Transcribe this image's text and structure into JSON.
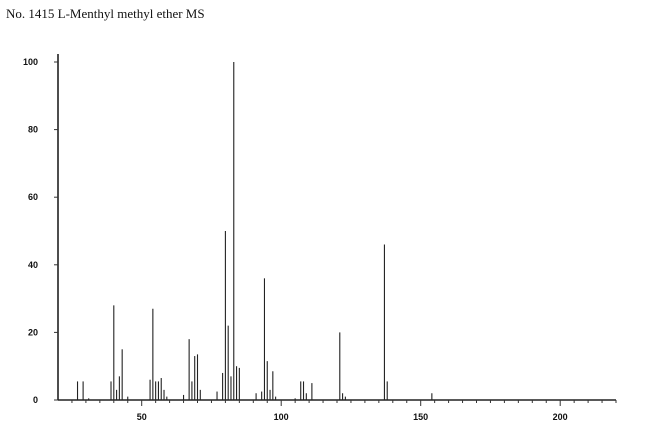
{
  "header": {
    "title": "No. 1415 L-Menthyl methyl ether MS"
  },
  "chart_data": {
    "type": "bar",
    "title": "No. 1415 L-Menthyl methyl ether MS",
    "xlabel": "",
    "ylabel": "",
    "xlim": [
      20,
      220
    ],
    "ylim": [
      0,
      100
    ],
    "x_ticks": [
      50,
      100,
      150,
      200
    ],
    "y_ticks": [
      0,
      20,
      40,
      60,
      80,
      100
    ],
    "grid": false,
    "legend": "none",
    "series": [
      {
        "x": [
          27,
          29,
          31,
          39,
          40,
          41,
          42,
          43,
          45,
          53,
          54,
          55,
          56,
          57,
          58,
          59,
          65,
          67,
          68,
          69,
          70,
          71,
          77,
          79,
          80,
          81,
          82,
          83,
          84,
          85,
          91,
          93,
          94,
          95,
          96,
          97,
          98,
          105,
          107,
          108,
          109,
          111,
          121,
          122,
          123,
          137,
          138,
          154
        ],
        "values": [
          5.5,
          5.5,
          0.5,
          5.5,
          28,
          3,
          7,
          15,
          1,
          6,
          27,
          5.5,
          5.5,
          6.5,
          3,
          1,
          1.5,
          18,
          5.5,
          13,
          13.5,
          3,
          2.5,
          8,
          50,
          22,
          7,
          100,
          10,
          9.5,
          2,
          2.5,
          36,
          11.5,
          3,
          8.5,
          1,
          0.5,
          5.5,
          5.5,
          2,
          5,
          20,
          2,
          1,
          46,
          5.5,
          2
        ]
      }
    ]
  }
}
